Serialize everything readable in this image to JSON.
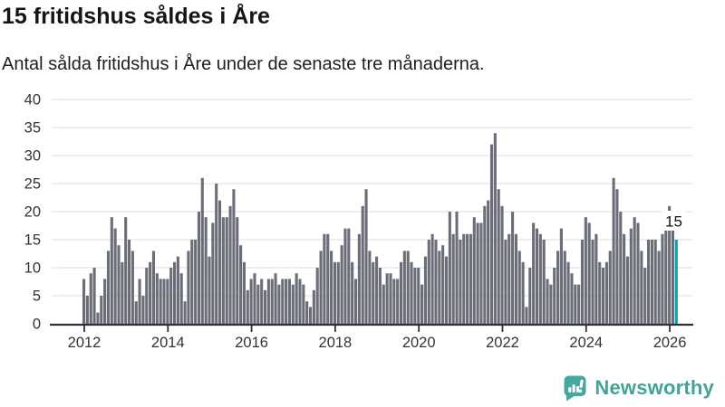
{
  "header": {
    "title": "15 fritidshus såldes i Åre",
    "subtitle": "Antal sålda fritidshus i Åre under de senaste tre månaderna."
  },
  "chart_data": {
    "type": "bar",
    "title": "15 fritidshus såldes i Åre",
    "xlabel": "",
    "ylabel": "",
    "x_start": "2012-01",
    "x_end": "2026-03",
    "x_interval": "month",
    "values": [
      8,
      5,
      9,
      10,
      2,
      5,
      8,
      13,
      19,
      17,
      14,
      11,
      19,
      15,
      13,
      4,
      8,
      5,
      10,
      11,
      13,
      9,
      8,
      8,
      8,
      10,
      11,
      12,
      9,
      4,
      13,
      15,
      15,
      20,
      26,
      19,
      12,
      18,
      25,
      22,
      19,
      19,
      21,
      24,
      19,
      14,
      11,
      6,
      8,
      9,
      7,
      8,
      6,
      8,
      8,
      9,
      7,
      8,
      8,
      8,
      7,
      9,
      8,
      7,
      4,
      3,
      6,
      10,
      13,
      16,
      16,
      13,
      11,
      11,
      14,
      17,
      17,
      11,
      8,
      16,
      21,
      24,
      13,
      11,
      12,
      10,
      7,
      9,
      9,
      8,
      8,
      11,
      13,
      13,
      11,
      10,
      10,
      7,
      12,
      15,
      16,
      15,
      13,
      14,
      12,
      20,
      16,
      20,
      15,
      16,
      16,
      16,
      19,
      18,
      18,
      21,
      22,
      32,
      34,
      24,
      21,
      15,
      16,
      20,
      16,
      13,
      11,
      3,
      10,
      18,
      17,
      16,
      15,
      8,
      7,
      10,
      13,
      17,
      13,
      11,
      9,
      7,
      7,
      15,
      19,
      18,
      15,
      16,
      11,
      10,
      11,
      13,
      26,
      24,
      20,
      16,
      12,
      17,
      19,
      18,
      13,
      10,
      15,
      15,
      15,
      13,
      16,
      20,
      21,
      18,
      15
    ],
    "ylim": [
      0,
      40
    ],
    "yticks": [
      0,
      5,
      10,
      15,
      20,
      25,
      30,
      35,
      40
    ],
    "xticks": [
      "2012",
      "2014",
      "2016",
      "2018",
      "2020",
      "2022",
      "2024",
      "2026"
    ],
    "grid": true,
    "legend_position": "none",
    "bar_color": "#6b6e78",
    "highlight": {
      "index": 170,
      "label": "15",
      "color": "#0da3a6"
    },
    "grid_color": "#e4e4e4",
    "axis_color": "#2f3138",
    "tick_label_color": "#333333"
  },
  "footer": {
    "brand": "Newsworthy",
    "brand_color": "#41a398",
    "logo_color": "#47a69e",
    "logo_icon": "newsworthy-chart-bubble"
  }
}
